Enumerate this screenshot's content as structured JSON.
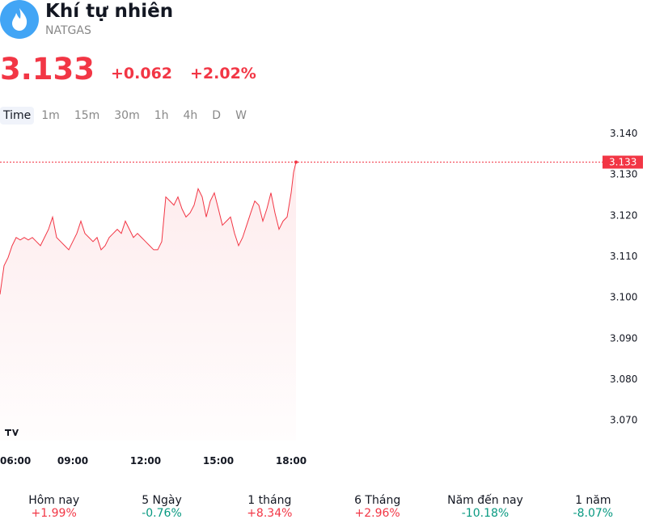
{
  "header": {
    "title": "Khí tự nhiên",
    "symbol": "NATGAS"
  },
  "quote": {
    "price": "3.133",
    "change": "+0.062",
    "change_pct": "+2.02%"
  },
  "timeframes": [
    "Time",
    "1m",
    "15m",
    "30m",
    "1h",
    "4h",
    "D",
    "W"
  ],
  "chart_data": {
    "type": "line",
    "x": [
      "06:00",
      "06:10",
      "06:20",
      "06:30",
      "06:40",
      "06:50",
      "07:00",
      "07:10",
      "07:20",
      "07:30",
      "07:40",
      "07:50",
      "08:00",
      "08:10",
      "08:20",
      "08:30",
      "08:40",
      "08:50",
      "09:00",
      "09:10",
      "09:20",
      "09:30",
      "09:40",
      "09:50",
      "10:00",
      "10:10",
      "10:20",
      "10:30",
      "10:40",
      "10:50",
      "11:00",
      "11:10",
      "11:20",
      "11:30",
      "11:40",
      "11:50",
      "12:00",
      "12:10",
      "12:20",
      "12:30",
      "12:40",
      "12:50",
      "13:00",
      "13:10",
      "13:20",
      "13:30",
      "13:40",
      "13:50",
      "14:00",
      "14:10",
      "14:20",
      "14:30",
      "14:40",
      "14:50",
      "15:00",
      "15:10",
      "15:20",
      "15:30",
      "15:40",
      "15:50",
      "16:00",
      "16:10",
      "16:20",
      "16:30",
      "16:40",
      "16:50",
      "17:00",
      "17:10",
      "17:20",
      "17:30",
      "17:40",
      "17:50",
      "18:00",
      "18:06",
      "18:12"
    ],
    "series": [
      {
        "color": "#f23645",
        "values": [
          3.1007,
          3.1077,
          3.1097,
          3.1126,
          3.1146,
          3.114,
          3.1146,
          3.114,
          3.1146,
          3.1136,
          3.1126,
          3.1146,
          3.1166,
          3.1196,
          3.1146,
          3.1136,
          3.1126,
          3.1116,
          3.1136,
          3.1156,
          3.1186,
          3.1156,
          3.1146,
          3.1136,
          3.1146,
          3.1116,
          3.1126,
          3.1146,
          3.1156,
          3.1166,
          3.1156,
          3.1186,
          3.1166,
          3.1146,
          3.1156,
          3.1146,
          3.1136,
          3.1126,
          3.1116,
          3.1116,
          3.1136,
          3.1245,
          3.1235,
          3.1225,
          3.1245,
          3.1216,
          3.1196,
          3.1206,
          3.1225,
          3.1265,
          3.1245,
          3.1196,
          3.1235,
          3.1255,
          3.1216,
          3.1176,
          3.1186,
          3.1196,
          3.1156,
          3.1126,
          3.1146,
          3.1176,
          3.1206,
          3.1235,
          3.1225,
          3.1186,
          3.1216,
          3.1255,
          3.1206,
          3.1166,
          3.1186,
          3.1196,
          3.1255,
          3.1305,
          3.133
        ]
      }
    ],
    "xlim": [
      "06:00",
      "18:15"
    ],
    "xticks": [
      "06:00",
      "09:00",
      "12:00",
      "15:00",
      "18:00"
    ],
    "ylim": [
      3.065,
      3.141
    ],
    "yticks": [
      {
        "value": 3.14,
        "label": "3.140"
      },
      {
        "value": 3.13,
        "label": "3.130"
      },
      {
        "value": 3.12,
        "label": "3.120"
      },
      {
        "value": 3.11,
        "label": "3.110"
      },
      {
        "value": 3.1,
        "label": "3.100"
      },
      {
        "value": 3.09,
        "label": "3.090"
      },
      {
        "value": 3.08,
        "label": "3.080"
      },
      {
        "value": 3.07,
        "label": "3.070"
      }
    ],
    "last_label": "3.133"
  },
  "performance": [
    {
      "label": "Hôm nay",
      "value": "+1.99%",
      "color": "#f23645"
    },
    {
      "label": "5 Ngày",
      "value": "-0.76%",
      "color": "#089981"
    },
    {
      "label": "1 tháng",
      "value": "+8.34%",
      "color": "#f23645"
    },
    {
      "label": "6 Tháng",
      "value": "+2.96%",
      "color": "#f23645"
    },
    {
      "label": "Năm đến nay",
      "value": "-10.18%",
      "color": "#089981"
    },
    {
      "label": "1 năm",
      "value": "-8.07%",
      "color": "#089981"
    }
  ]
}
